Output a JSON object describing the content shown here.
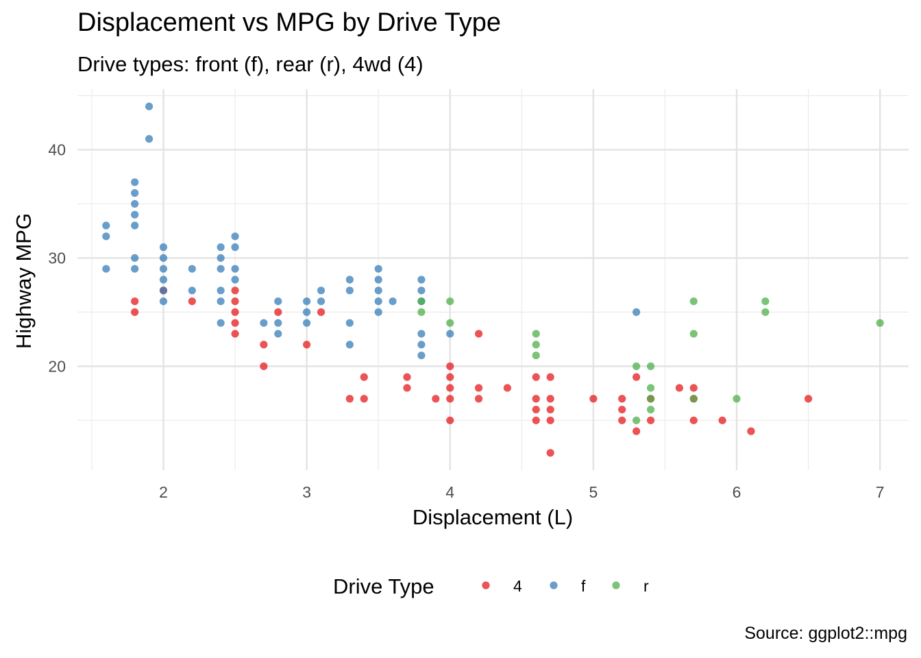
{
  "chart_data": {
    "type": "scatter",
    "title": "Displacement vs MPG by Drive Type",
    "subtitle": "Drive types: front (f), rear (r), 4wd (4)",
    "caption": "Source: ggplot2::mpg",
    "xlabel": "Displacement (L)",
    "ylabel": "Highway MPG",
    "xlim": [
      1.4,
      7.2
    ],
    "ylim": [
      10.4,
      45.6
    ],
    "x_ticks": [
      2,
      3,
      4,
      5,
      6,
      7
    ],
    "y_ticks": [
      20,
      30,
      40
    ],
    "grid": true,
    "legend": {
      "title": "Drive Type",
      "position": "bottom"
    },
    "series": [
      {
        "name": "4",
        "color": "#E41A1C",
        "points": [
          [
            1.8,
            26
          ],
          [
            1.8,
            25
          ],
          [
            2.0,
            27
          ],
          [
            2.2,
            26
          ],
          [
            2.5,
            27
          ],
          [
            2.5,
            26
          ],
          [
            2.5,
            25
          ],
          [
            2.5,
            24
          ],
          [
            2.5,
            23
          ],
          [
            2.7,
            22
          ],
          [
            2.7,
            20
          ],
          [
            2.8,
            25
          ],
          [
            3.0,
            22
          ],
          [
            3.1,
            25
          ],
          [
            3.3,
            17
          ],
          [
            3.4,
            19
          ],
          [
            3.4,
            17
          ],
          [
            3.7,
            19
          ],
          [
            3.7,
            18
          ],
          [
            3.9,
            17
          ],
          [
            4.0,
            20
          ],
          [
            4.0,
            19
          ],
          [
            4.0,
            18
          ],
          [
            4.0,
            17
          ],
          [
            4.0,
            15
          ],
          [
            4.2,
            23
          ],
          [
            4.2,
            18
          ],
          [
            4.2,
            17
          ],
          [
            4.4,
            18
          ],
          [
            4.6,
            19
          ],
          [
            4.6,
            17
          ],
          [
            4.6,
            16
          ],
          [
            4.6,
            15
          ],
          [
            4.7,
            19
          ],
          [
            4.7,
            17
          ],
          [
            4.7,
            16
          ],
          [
            4.7,
            15
          ],
          [
            4.7,
            12
          ],
          [
            5.0,
            17
          ],
          [
            5.2,
            17
          ],
          [
            5.2,
            16
          ],
          [
            5.2,
            15
          ],
          [
            5.3,
            19
          ],
          [
            5.3,
            14
          ],
          [
            5.4,
            17
          ],
          [
            5.4,
            15
          ],
          [
            5.6,
            18
          ],
          [
            5.7,
            18
          ],
          [
            5.7,
            17
          ],
          [
            5.7,
            15
          ],
          [
            5.9,
            15
          ],
          [
            6.1,
            14
          ],
          [
            6.5,
            17
          ]
        ]
      },
      {
        "name": "f",
        "color": "#377EB8",
        "points": [
          [
            1.6,
            33
          ],
          [
            1.6,
            32
          ],
          [
            1.6,
            29
          ],
          [
            1.8,
            37
          ],
          [
            1.8,
            36
          ],
          [
            1.8,
            35
          ],
          [
            1.8,
            34
          ],
          [
            1.8,
            33
          ],
          [
            1.8,
            30
          ],
          [
            1.8,
            29
          ],
          [
            1.9,
            44
          ],
          [
            1.9,
            41
          ],
          [
            2.0,
            31
          ],
          [
            2.0,
            30
          ],
          [
            2.0,
            29
          ],
          [
            2.0,
            28
          ],
          [
            2.0,
            27
          ],
          [
            2.0,
            26
          ],
          [
            2.2,
            29
          ],
          [
            2.2,
            27
          ],
          [
            2.4,
            31
          ],
          [
            2.4,
            30
          ],
          [
            2.4,
            29
          ],
          [
            2.4,
            27
          ],
          [
            2.4,
            26
          ],
          [
            2.4,
            24
          ],
          [
            2.5,
            32
          ],
          [
            2.5,
            31
          ],
          [
            2.5,
            29
          ],
          [
            2.5,
            28
          ],
          [
            2.7,
            24
          ],
          [
            2.8,
            26
          ],
          [
            2.8,
            24
          ],
          [
            2.8,
            23
          ],
          [
            3.0,
            26
          ],
          [
            3.0,
            25
          ],
          [
            3.0,
            24
          ],
          [
            3.1,
            27
          ],
          [
            3.1,
            26
          ],
          [
            3.3,
            28
          ],
          [
            3.3,
            27
          ],
          [
            3.3,
            24
          ],
          [
            3.3,
            22
          ],
          [
            3.5,
            29
          ],
          [
            3.5,
            28
          ],
          [
            3.5,
            27
          ],
          [
            3.5,
            26
          ],
          [
            3.5,
            25
          ],
          [
            3.6,
            26
          ],
          [
            3.8,
            28
          ],
          [
            3.8,
            27
          ],
          [
            3.8,
            26
          ],
          [
            3.8,
            23
          ],
          [
            3.8,
            22
          ],
          [
            3.8,
            21
          ],
          [
            4.0,
            23
          ],
          [
            5.3,
            25
          ]
        ]
      },
      {
        "name": "r",
        "color": "#4DAF4A",
        "points": [
          [
            3.8,
            26
          ],
          [
            3.8,
            25
          ],
          [
            4.0,
            26
          ],
          [
            4.0,
            24
          ],
          [
            4.6,
            23
          ],
          [
            4.6,
            22
          ],
          [
            4.6,
            21
          ],
          [
            5.3,
            20
          ],
          [
            5.3,
            15
          ],
          [
            5.4,
            20
          ],
          [
            5.4,
            18
          ],
          [
            5.4,
            17
          ],
          [
            5.4,
            16
          ],
          [
            5.7,
            26
          ],
          [
            5.7,
            23
          ],
          [
            5.7,
            17
          ],
          [
            6.0,
            17
          ],
          [
            6.2,
            26
          ],
          [
            6.2,
            25
          ],
          [
            7.0,
            24
          ]
        ]
      }
    ]
  }
}
